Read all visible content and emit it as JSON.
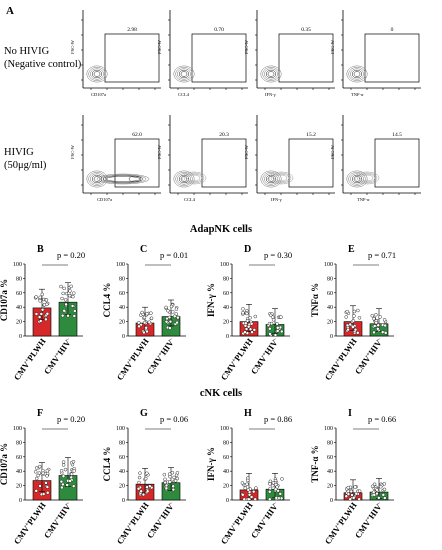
{
  "panel_a": {
    "letter": "A",
    "rows": [
      {
        "label_line1": "No HIVIG",
        "label_line2": "(Negative control)",
        "plots": [
          {
            "ylabel": "FSC-W",
            "xlabel": "CD107a",
            "gate_value": "2.98"
          },
          {
            "ylabel": "FSC-W",
            "xlabel": "CCL4",
            "gate_value": "0.70"
          },
          {
            "ylabel": "FSC-W",
            "xlabel": "IFN-γ",
            "gate_value": "0.35"
          },
          {
            "ylabel": "FSC-W",
            "xlabel": "TNF-α",
            "gate_value": "0"
          }
        ]
      },
      {
        "label_line1": "HIVIG",
        "label_line2": "(50μg/ml)",
        "plots": [
          {
            "ylabel": "FSC-W",
            "xlabel": "CD107a",
            "gate_value": "62.0"
          },
          {
            "ylabel": "FSC-W",
            "xlabel": "CCL4",
            "gate_value": "20.3"
          },
          {
            "ylabel": "FSC-W",
            "xlabel": "IFN-γ",
            "gate_value": "15.2"
          },
          {
            "ylabel": "FSC-W",
            "xlabel": "TNF-α",
            "gate_value": "14.5"
          }
        ]
      }
    ]
  },
  "section_titles": {
    "adapnk": "AdapNK cells",
    "cnk": "cNK cells"
  },
  "colors": {
    "plwh": "#d62828",
    "hiv_neg": "#2e8b3d"
  },
  "chart_data": [
    {
      "type": "bar",
      "panel": "B",
      "ylabel": "CD107a %",
      "ylim": [
        0,
        100
      ],
      "yticks": [
        0,
        20,
        40,
        60,
        80,
        100
      ],
      "categories": [
        "CMV+PLWH",
        "CMV+HIV-"
      ],
      "values": [
        39,
        47
      ],
      "sd": [
        16,
        17
      ],
      "p_value": "p = 0.20"
    },
    {
      "type": "bar",
      "panel": "C",
      "ylabel": "CCL4 %",
      "ylim": [
        0,
        100
      ],
      "yticks": [
        0,
        20,
        40,
        60,
        80,
        100
      ],
      "categories": [
        "CMV+PLWH",
        "CMV+HIV-"
      ],
      "values": [
        18,
        27
      ],
      "sd": [
        12,
        13
      ],
      "p_value": "p = 0.01"
    },
    {
      "type": "bar",
      "panel": "D",
      "ylabel": "IFN-γ %",
      "ylim": [
        0,
        100
      ],
      "yticks": [
        0,
        20,
        40,
        60,
        80,
        100
      ],
      "categories": [
        "CMV+PLWH",
        "CMV+HIV-"
      ],
      "values": [
        20,
        16
      ],
      "sd": [
        14,
        12
      ],
      "p_value": "p = 0.30"
    },
    {
      "type": "bar",
      "panel": "E",
      "ylabel": "TNFα %",
      "ylim": [
        0,
        100
      ],
      "yticks": [
        0,
        20,
        40,
        60,
        80,
        100
      ],
      "categories": [
        "CMV+PLWH",
        "CMV+HIV-"
      ],
      "values": [
        20,
        17
      ],
      "sd": [
        12,
        11
      ],
      "p_value": "p = 0.71"
    },
    {
      "type": "bar",
      "panel": "F",
      "ylabel": "CD107a %",
      "ylim": [
        0,
        100
      ],
      "yticks": [
        0,
        20,
        40,
        60,
        80,
        100
      ],
      "categories": [
        "CMV+PLWH",
        "CMV+HIV-"
      ],
      "values": [
        27,
        34
      ],
      "sd": [
        15,
        15
      ],
      "p_value": "p = 0.20"
    },
    {
      "type": "bar",
      "panel": "G",
      "ylabel": "CCL4 %",
      "ylim": [
        0,
        100
      ],
      "yticks": [
        0,
        20,
        40,
        60,
        80,
        100
      ],
      "categories": [
        "CMV+PLWH",
        "CMV+HIV-"
      ],
      "values": [
        22,
        24
      ],
      "sd": [
        12,
        11
      ],
      "p_value": "p = 0.06"
    },
    {
      "type": "bar",
      "panel": "H",
      "ylabel": "IFN-γ %",
      "ylim": [
        0,
        100
      ],
      "yticks": [
        0,
        20,
        40,
        60,
        80,
        100
      ],
      "categories": [
        "CMV+PLWH",
        "CMV+HIV-"
      ],
      "values": [
        14,
        15
      ],
      "sd": [
        13,
        12
      ],
      "p_value": "p = 0.86"
    },
    {
      "type": "bar",
      "panel": "I",
      "ylabel": "TNF-α %",
      "ylim": [
        0,
        100
      ],
      "yticks": [
        0,
        20,
        40,
        60,
        80,
        100
      ],
      "categories": [
        "CMV+PLWH",
        "CMV+HIV-"
      ],
      "values": [
        10,
        11
      ],
      "sd": [
        8,
        9
      ],
      "p_value": "p = 0.66"
    }
  ]
}
